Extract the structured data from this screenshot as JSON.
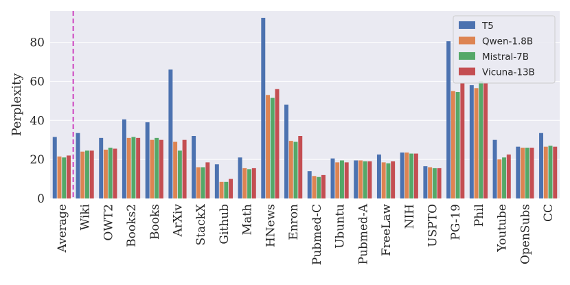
{
  "chart_data": {
    "type": "bar",
    "title": "",
    "xlabel": "",
    "ylabel": "Perplexity",
    "ylim": [
      0,
      96
    ],
    "yticks": [
      0,
      20,
      40,
      60,
      80
    ],
    "grid": "horizontal",
    "background": "#EAEAF2",
    "legend_position": "top-right",
    "separator_after": "Average",
    "separator_color": "#D35FC8",
    "categories": [
      "Average",
      "Wiki",
      "OWT2",
      "Books2",
      "Books",
      "ArXiv",
      "StackX",
      "Github",
      "Math",
      "HNews",
      "Enron",
      "Pubmed-C",
      "Ubuntu",
      "Pubmed-A",
      "FreeLaw",
      "NIH",
      "USPTO",
      "PG-19",
      "Phil",
      "Youtube",
      "OpenSubs",
      "CC"
    ],
    "series": [
      {
        "name": "T5",
        "color": "#4C72B0",
        "values": [
          31.5,
          33.5,
          31.0,
          40.5,
          39.0,
          66.0,
          32.0,
          17.5,
          21.0,
          92.5,
          48.0,
          14.0,
          20.5,
          19.5,
          22.5,
          23.5,
          16.5,
          80.5,
          58.0,
          30.0,
          26.5,
          33.5
        ]
      },
      {
        "name": "Qwen-1.8B",
        "color": "#DD8452",
        "values": [
          21.5,
          24.0,
          25.0,
          31.0,
          30.0,
          29.0,
          16.0,
          8.5,
          15.5,
          53.0,
          29.5,
          11.5,
          18.5,
          19.5,
          18.5,
          23.5,
          16.0,
          55.0,
          56.5,
          20.0,
          26.0,
          26.5
        ]
      },
      {
        "name": "Mistral-7B",
        "color": "#55A868",
        "values": [
          21.0,
          24.5,
          26.0,
          31.5,
          31.0,
          24.5,
          16.0,
          8.5,
          15.0,
          51.5,
          29.0,
          11.0,
          19.5,
          19.0,
          18.0,
          23.0,
          15.5,
          54.5,
          60.0,
          21.0,
          26.0,
          27.0
        ]
      },
      {
        "name": "Vicuna-13B",
        "color": "#C44E52",
        "values": [
          22.0,
          24.5,
          25.5,
          31.0,
          30.0,
          30.0,
          18.5,
          10.0,
          15.5,
          56.0,
          32.0,
          12.0,
          18.5,
          19.0,
          19.0,
          23.0,
          15.5,
          59.0,
          59.0,
          22.5,
          26.0,
          26.5
        ]
      }
    ]
  }
}
